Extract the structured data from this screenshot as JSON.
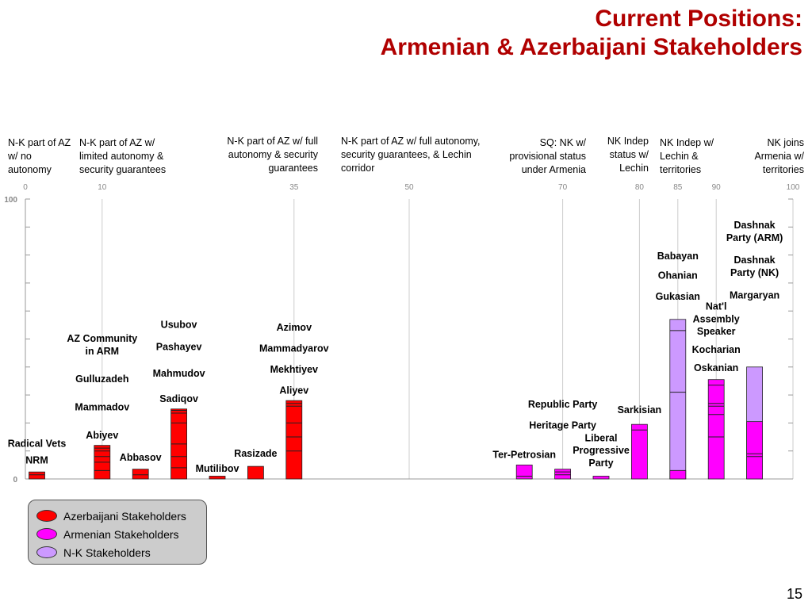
{
  "title": {
    "line1": "Current Positions:",
    "line2": "Armenian & Azerbaijani Stakeholders"
  },
  "position_labels": [
    {
      "text": "N-K part of AZ w/ no autonomy",
      "x": 10,
      "w": 80,
      "y": 172,
      "align": "left"
    },
    {
      "text": "N-K part of AZ w/ limited autonomy & security guarantees",
      "x": 100,
      "w": 130,
      "y": 172,
      "align": "left"
    },
    {
      "text": "N-K part of AZ w/ full autonomy & security guarantees",
      "x": 255,
      "w": 146,
      "y": 170,
      "align": "right"
    },
    {
      "text": "N-K part of AZ w/ full autonomy, security guarantees, & Lechin corridor",
      "x": 430,
      "w": 190,
      "y": 170,
      "align": "left"
    },
    {
      "text": "SQ: NK w/ provisional status under Armenia",
      "x": 625,
      "w": 114,
      "y": 172,
      "align": "right"
    },
    {
      "text": "NK Indep status w/ Lechin",
      "x": 750,
      "w": 68,
      "y": 170,
      "align": "right"
    },
    {
      "text": "NK Indep w/ Lechin & territories",
      "x": 832,
      "w": 82,
      "y": 172,
      "align": "left"
    },
    {
      "text": "NK joins Armenia w/ territories",
      "x": 930,
      "w": 84,
      "y": 172,
      "align": "right"
    }
  ],
  "slide_number": "15",
  "legend": [
    {
      "label": "Azerbaijani Stakeholders",
      "color": "#ff0000"
    },
    {
      "label": "Armenian Stakeholders",
      "color": "#ff00ff"
    },
    {
      "label": "N-K Stakeholders",
      "color": "#cc99ff"
    }
  ],
  "chart_data": {
    "type": "bar",
    "title": "",
    "xlabel": "",
    "ylabel": "",
    "xlim": [
      0,
      100
    ],
    "ylim": [
      0,
      100
    ],
    "x_ticks": [
      0,
      10,
      35,
      50,
      70,
      80,
      85,
      90,
      100
    ],
    "y_ticks": [
      {
        "v": 0,
        "label": "0"
      },
      {
        "v": 100,
        "label": "100"
      }
    ],
    "colors": {
      "az": "#ff0000",
      "arm": "#ff00ff",
      "nk": "#cc99ff"
    },
    "bars": [
      {
        "x": 1.5,
        "color": "az",
        "height": 2.5,
        "dividers": [
          1.5
        ]
      },
      {
        "x": 10,
        "color": "az",
        "height": 12,
        "dividers": [
          3,
          6,
          8,
          10,
          11
        ]
      },
      {
        "x": 15,
        "color": "az",
        "height": 3.5,
        "dividers": [
          1.5
        ]
      },
      {
        "x": 20,
        "color": "az",
        "height": 25,
        "dividers": [
          4,
          8,
          12.5,
          20,
          23.5,
          24.5
        ]
      },
      {
        "x": 25,
        "color": "az",
        "height": 1,
        "dividers": []
      },
      {
        "x": 30,
        "color": "az",
        "height": 4.5,
        "dividers": []
      },
      {
        "x": 35,
        "color": "az",
        "height": 28,
        "dividers": [
          10,
          15,
          20,
          26,
          27
        ]
      },
      {
        "x": 65,
        "color": "arm",
        "height": 5,
        "dividers": [
          1
        ]
      },
      {
        "x": 70,
        "color": "arm",
        "height": 3.5,
        "dividers": [
          1.5,
          2.5
        ]
      },
      {
        "x": 75,
        "color": "arm",
        "height": 1,
        "dividers": []
      },
      {
        "x": 80,
        "color": "arm",
        "height": 19.5,
        "dividers": [
          17.5
        ]
      },
      {
        "x": 85,
        "color": "nk",
        "height": 57,
        "dividers": [
          3,
          31,
          53
        ]
      },
      {
        "x": 85,
        "color": "arm",
        "height": 3,
        "dividers": []
      },
      {
        "x": 90,
        "color": "arm",
        "height": 35.5,
        "dividers": [
          15,
          23,
          26,
          27,
          33.5
        ]
      },
      {
        "x": 95,
        "color": "nk",
        "height": 40,
        "dividers": []
      },
      {
        "x": 95,
        "color": "arm",
        "height": 20.5,
        "dividers": [
          8,
          9
        ]
      }
    ],
    "stakeholders": [
      {
        "text": "Radical Vets",
        "x": 1.5,
        "y": 11.5
      },
      {
        "text": "NRM",
        "x": 1.5,
        "y": 5.5
      },
      {
        "text": "AZ Community",
        "x": 10,
        "y": 49
      },
      {
        "text": "in ARM",
        "x": 10,
        "y": 44.5
      },
      {
        "text": "Gulluzadeh",
        "x": 10,
        "y": 34.5
      },
      {
        "text": "Mammadov",
        "x": 10,
        "y": 24.5
      },
      {
        "text": "Abiyev",
        "x": 10,
        "y": 14.5
      },
      {
        "text": "Abbasov",
        "x": 15,
        "y": 6.5
      },
      {
        "text": "Usubov",
        "x": 20,
        "y": 54
      },
      {
        "text": "Pashayev",
        "x": 20,
        "y": 46
      },
      {
        "text": "Mahmudov",
        "x": 20,
        "y": 36.5
      },
      {
        "text": "Sadiqov",
        "x": 20,
        "y": 27.5
      },
      {
        "text": "Mutilibov",
        "x": 25,
        "y": 2.5
      },
      {
        "text": "Rasizade",
        "x": 30,
        "y": 8
      },
      {
        "text": "Azimov",
        "x": 35,
        "y": 53
      },
      {
        "text": "Mammadyarov",
        "x": 35,
        "y": 45.5
      },
      {
        "text": "Mekhtiyev",
        "x": 35,
        "y": 38
      },
      {
        "text": "Aliyev",
        "x": 35,
        "y": 30.5
      },
      {
        "text": "Ter-Petrosian",
        "x": 65,
        "y": 7.5
      },
      {
        "text": "Republic Party",
        "x": 70,
        "y": 25.5
      },
      {
        "text": "Heritage Party",
        "x": 70,
        "y": 18
      },
      {
        "text": "Liberal",
        "x": 75,
        "y": 13.5
      },
      {
        "text": "Progressive",
        "x": 75,
        "y": 9
      },
      {
        "text": "Party",
        "x": 75,
        "y": 4.5
      },
      {
        "text": "Sarkisian",
        "x": 80,
        "y": 23.5
      },
      {
        "text": "Babayan",
        "x": 85,
        "y": 78.5
      },
      {
        "text": "Ohanian",
        "x": 85,
        "y": 71.5
      },
      {
        "text": "Gukasian",
        "x": 85,
        "y": 64
      },
      {
        "text": "Nat'l",
        "x": 90,
        "y": 60.5
      },
      {
        "text": "Assembly",
        "x": 90,
        "y": 56
      },
      {
        "text": "Speaker",
        "x": 90,
        "y": 51.5
      },
      {
        "text": "Kocharian",
        "x": 90,
        "y": 45
      },
      {
        "text": "Oskanian",
        "x": 90,
        "y": 38.5
      },
      {
        "text": "Dashnak",
        "x": 95,
        "y": 89.5
      },
      {
        "text": "Party (ARM)",
        "x": 95,
        "y": 85
      },
      {
        "text": "Dashnak",
        "x": 95,
        "y": 77
      },
      {
        "text": "Party (NK)",
        "x": 95,
        "y": 72.5
      },
      {
        "text": "Margaryan",
        "x": 95,
        "y": 64.5
      }
    ]
  }
}
